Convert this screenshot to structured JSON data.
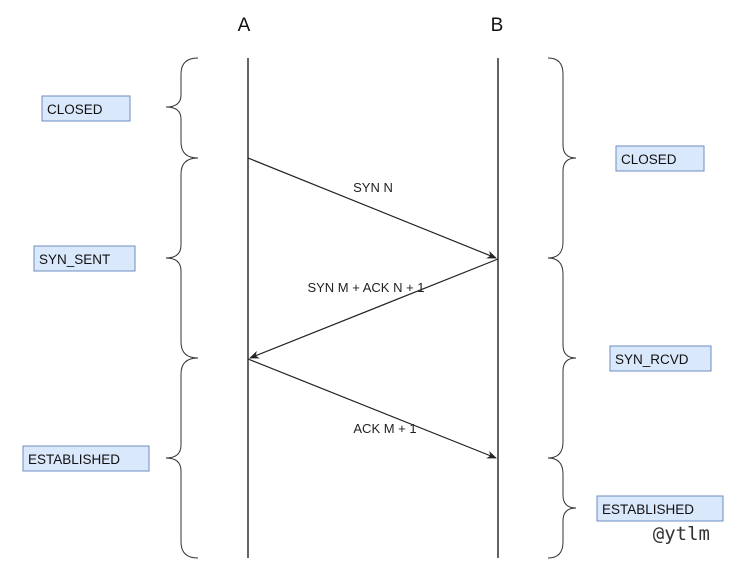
{
  "hosts": {
    "a": "A",
    "b": "B"
  },
  "messages": [
    {
      "label": "SYN N",
      "from": "A",
      "to": "B"
    },
    {
      "label": "SYN M + ACK N + 1",
      "from": "B",
      "to": "A"
    },
    {
      "label": "ACK M + 1",
      "from": "A",
      "to": "B"
    }
  ],
  "states_a": [
    {
      "label": "CLOSED"
    },
    {
      "label": "SYN_SENT"
    },
    {
      "label": "ESTABLISHED"
    }
  ],
  "states_b": [
    {
      "label": "CLOSED"
    },
    {
      "label": "SYN_RCVD"
    },
    {
      "label": "ESTABLISHED"
    }
  ],
  "watermark": "@ytlm",
  "colors": {
    "state_fill": "#dae8fc",
    "state_stroke": "#6c8ebf",
    "line": "#111111"
  }
}
